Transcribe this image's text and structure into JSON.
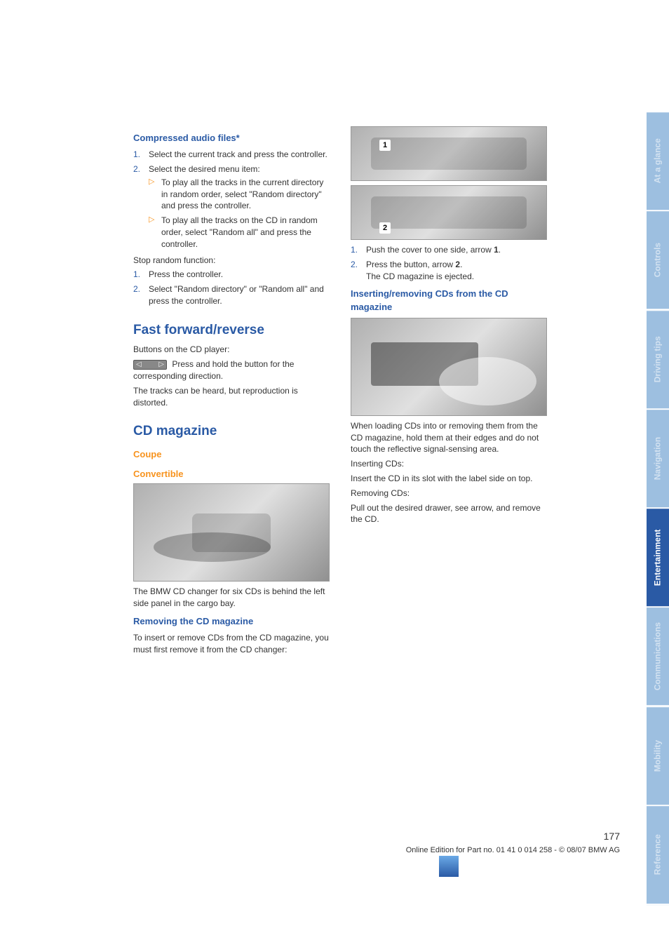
{
  "colors": {
    "heading_blue": "#2a5aa5",
    "accent_orange": "#f7931e",
    "body_text": "#333333",
    "tab_active_bg": "#2a5aa5",
    "tab_inactive_text": "rgba(255,255,255,0.55)",
    "tab_bg_light": "#9dbfe0"
  },
  "left": {
    "sec1_title": "Compressed audio files*",
    "sec1_item1": "Select the current track and press the controller.",
    "sec1_item2": "Select the desired menu item:",
    "sec1_sub1": "To play all the tracks in the current directory in random order, select \"Random directory\" and press the controller.",
    "sec1_sub2": "To play all the tracks on the CD in random order, select \"Random all\" and press the controller.",
    "stop_label": "Stop random function:",
    "stop_item1": "Press the controller.",
    "stop_item2": "Select \"Random directory\" or \"Random all\" and press the controller.",
    "h2_fast": "Fast forward/reverse",
    "fast_line1": "Buttons on the CD player:",
    "fast_line2": " Press and hold the button for the corresponding direction.",
    "fast_line3": "The tracks can be heard, but reproduction is distorted.",
    "h2_cdmag": "CD magazine",
    "coupe": "Coupe",
    "convertible": "Convertible",
    "after_photo": "The BMW CD changer for six CDs is behind the left side panel in the cargo bay.",
    "remove_title": "Removing the CD magazine",
    "remove_body": "To insert or remove CDs from the CD magazine, you must first remove it from the CD changer:"
  },
  "right": {
    "badge1": "1",
    "badge2": "2",
    "step1": "Push the cover to one side, arrow 1.",
    "step1_bold": "1",
    "step2a": "Press the button, arrow 2.",
    "step2_bold": "2",
    "step2b": "The CD magazine is ejected.",
    "insert_title": "Inserting/removing CDs from the CD magazine",
    "insert_para": "When loading CDs into or removing them from the CD magazine, hold them at their edges and do not touch the reflective signal-sensing area.",
    "inserting_label": "Inserting CDs:",
    "inserting_body": "Insert the CD in its slot with the label side on top.",
    "removing_label": "Removing CDs:",
    "removing_body": "Pull out the desired drawer, see arrow, and remove the CD."
  },
  "tabs": [
    {
      "label": "At a glance",
      "bg": "#9dbfe0",
      "dim": true
    },
    {
      "label": "Controls",
      "bg": "#9dbfe0",
      "dim": true
    },
    {
      "label": "Driving tips",
      "bg": "#9dbfe0",
      "dim": true
    },
    {
      "label": "Navigation",
      "bg": "#9dbfe0",
      "dim": true
    },
    {
      "label": "Entertainment",
      "bg": "#2a5aa5",
      "dim": false
    },
    {
      "label": "Communications",
      "bg": "#9dbfe0",
      "dim": true
    },
    {
      "label": "Mobility",
      "bg": "#9dbfe0",
      "dim": true
    },
    {
      "label": "Reference",
      "bg": "#9dbfe0",
      "dim": true
    }
  ],
  "footer": {
    "page": "177",
    "line": "Online Edition for Part no. 01 41 0 014 258 - © 08/07 BMW AG"
  }
}
